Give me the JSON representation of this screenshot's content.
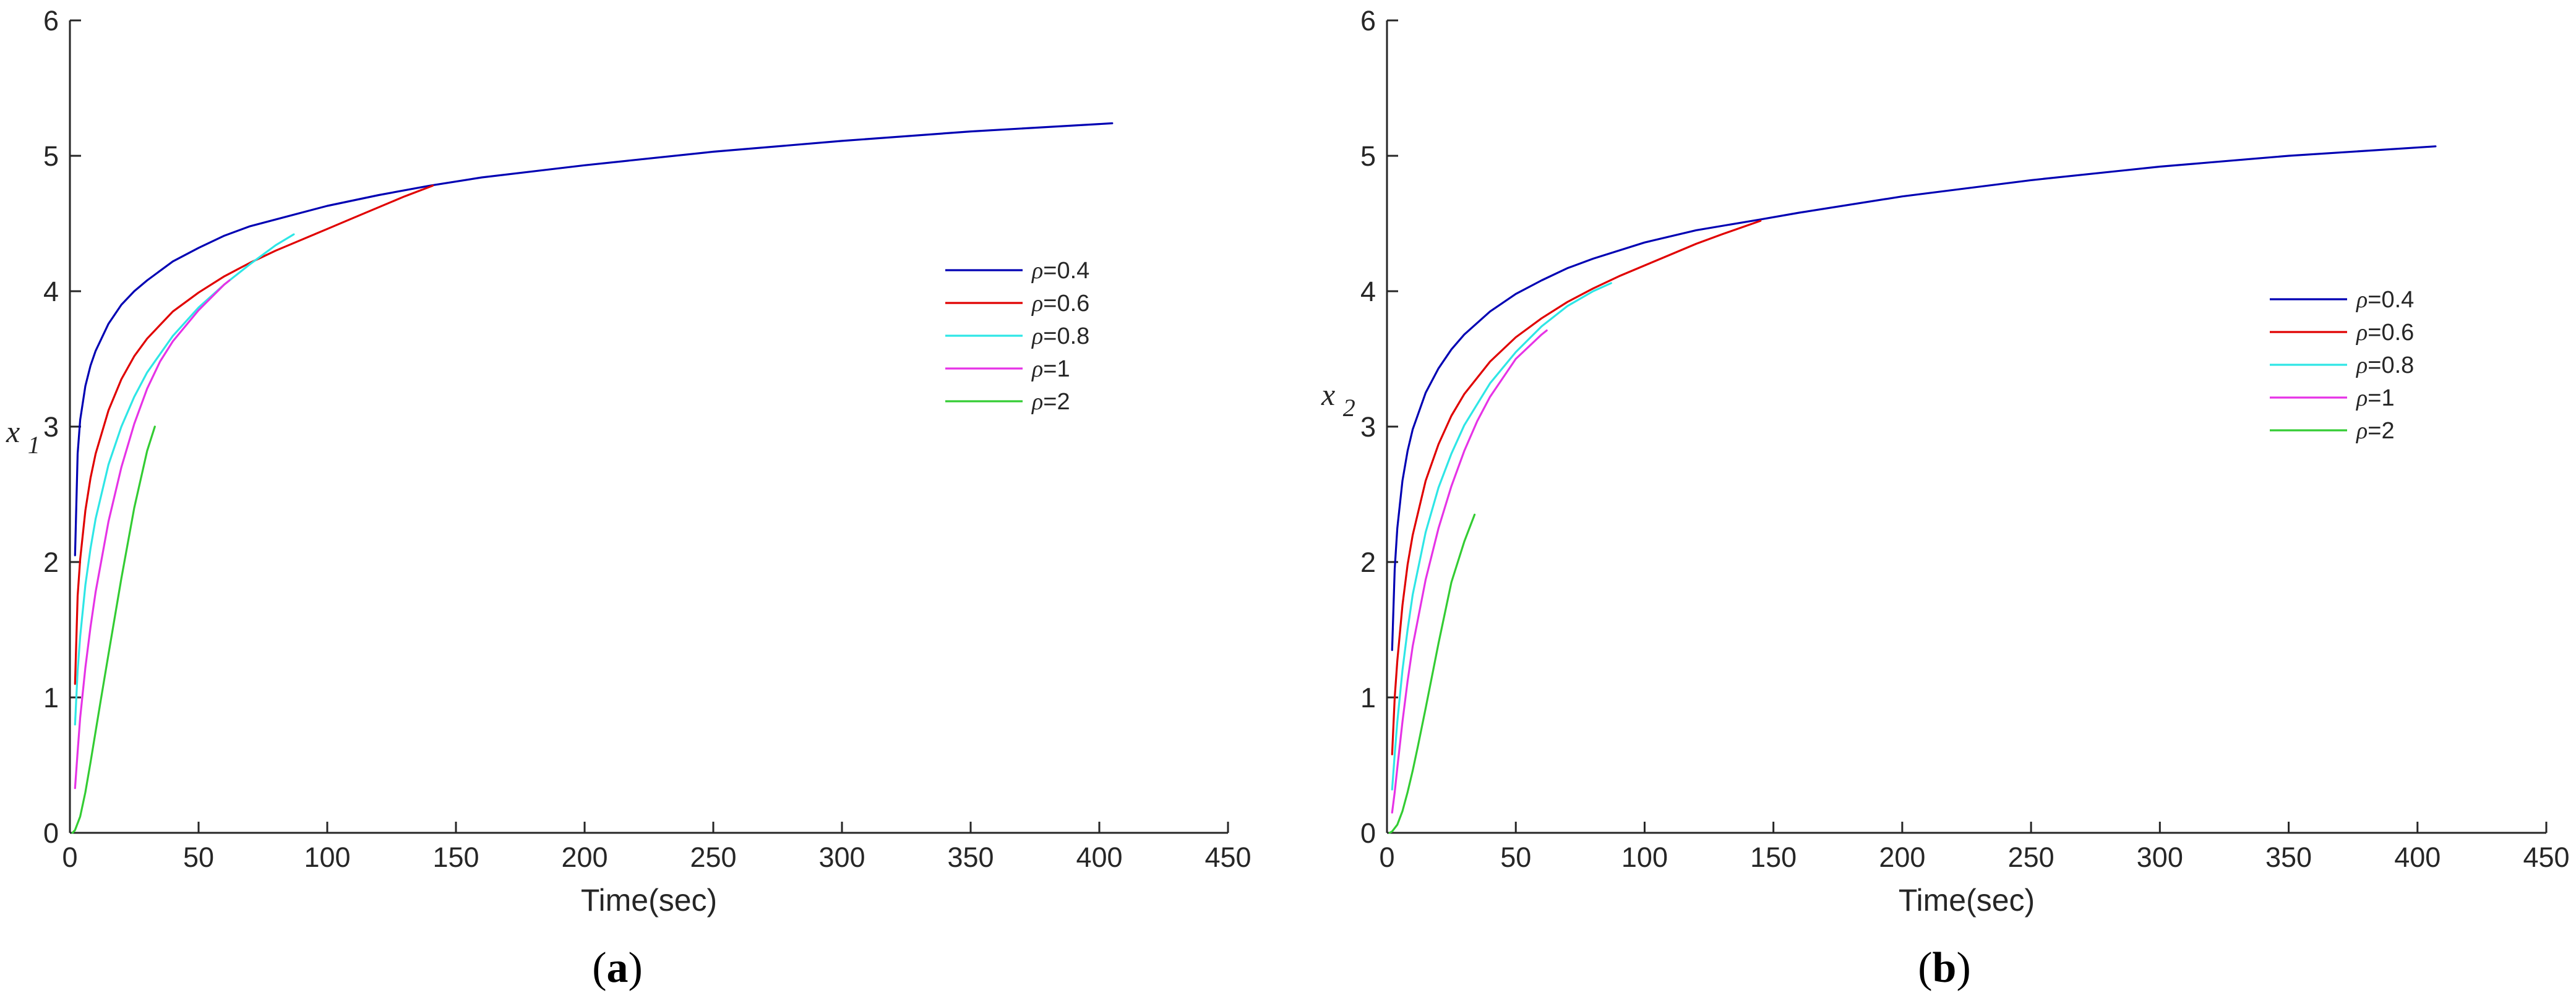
{
  "chart_data": [
    {
      "type": "line",
      "panel_label": "a",
      "xlabel": "Time(sec)",
      "ylabel": "x",
      "ylabel_subscript": "1",
      "xlim": [
        0,
        450
      ],
      "ylim": [
        0,
        6
      ],
      "xticks": [
        0,
        50,
        100,
        150,
        200,
        250,
        300,
        350,
        400,
        450
      ],
      "yticks": [
        0,
        1,
        2,
        3,
        4,
        5,
        6
      ],
      "grid": false,
      "legend_position": "right-center",
      "series": [
        {
          "name": "ρ=0.4",
          "color": "#0000b3",
          "x": [
            2,
            3,
            4,
            6,
            8,
            10,
            15,
            20,
            25,
            30,
            40,
            50,
            60,
            70,
            80,
            100,
            120,
            140,
            160,
            200,
            250,
            300,
            350,
            405
          ],
          "y": [
            2.05,
            2.8,
            3.05,
            3.3,
            3.45,
            3.56,
            3.76,
            3.9,
            4.0,
            4.08,
            4.22,
            4.32,
            4.41,
            4.48,
            4.53,
            4.63,
            4.71,
            4.78,
            4.84,
            4.93,
            5.03,
            5.11,
            5.18,
            5.24
          ]
        },
        {
          "name": "ρ=0.6",
          "color": "#e00000",
          "x": [
            2,
            3,
            4,
            6,
            8,
            10,
            15,
            20,
            25,
            30,
            40,
            50,
            60,
            70,
            80,
            90,
            100,
            110,
            120,
            130,
            141
          ],
          "y": [
            1.1,
            1.75,
            2.02,
            2.38,
            2.62,
            2.8,
            3.12,
            3.35,
            3.52,
            3.65,
            3.85,
            3.99,
            4.11,
            4.21,
            4.3,
            4.38,
            4.46,
            4.54,
            4.62,
            4.7,
            4.78
          ]
        },
        {
          "name": "ρ=0.8",
          "color": "#2ee6e6",
          "x": [
            2,
            3,
            4,
            6,
            8,
            10,
            15,
            20,
            25,
            30,
            40,
            50,
            60,
            70,
            80,
            87
          ],
          "y": [
            0.8,
            1.2,
            1.45,
            1.83,
            2.1,
            2.32,
            2.72,
            3.0,
            3.22,
            3.4,
            3.67,
            3.88,
            4.05,
            4.2,
            4.34,
            4.42
          ]
        },
        {
          "name": "ρ=1",
          "color": "#e633e6",
          "x": [
            2,
            3,
            4,
            6,
            8,
            10,
            15,
            20,
            25,
            30,
            35,
            40,
            50,
            60,
            62
          ],
          "y": [
            0.33,
            0.6,
            0.85,
            1.22,
            1.52,
            1.78,
            2.3,
            2.7,
            3.02,
            3.28,
            3.48,
            3.63,
            3.86,
            4.05,
            4.08
          ]
        },
        {
          "name": "ρ=2",
          "color": "#33cc33",
          "x": [
            1,
            2,
            4,
            6,
            8,
            10,
            12,
            15,
            20,
            25,
            30,
            33
          ],
          "y": [
            0.0,
            0.02,
            0.12,
            0.3,
            0.52,
            0.75,
            0.98,
            1.32,
            1.88,
            2.4,
            2.82,
            3.0
          ]
        }
      ]
    },
    {
      "type": "line",
      "panel_label": "b",
      "xlabel": "Time(sec)",
      "ylabel": "x",
      "ylabel_subscript": "2",
      "xlim": [
        0,
        450
      ],
      "ylim": [
        0,
        6
      ],
      "xticks": [
        0,
        50,
        100,
        150,
        200,
        250,
        300,
        350,
        400,
        450
      ],
      "yticks": [
        0,
        1,
        2,
        3,
        4,
        5,
        6
      ],
      "grid": false,
      "legend_position": "right-center",
      "series": [
        {
          "name": "ρ=0.4",
          "color": "#0000b3",
          "x": [
            2,
            3,
            4,
            6,
            8,
            10,
            15,
            20,
            25,
            30,
            40,
            50,
            60,
            70,
            80,
            100,
            120,
            145,
            160,
            200,
            250,
            300,
            350,
            407
          ],
          "y": [
            1.35,
            1.95,
            2.25,
            2.6,
            2.82,
            2.98,
            3.25,
            3.43,
            3.57,
            3.68,
            3.85,
            3.98,
            4.08,
            4.17,
            4.24,
            4.36,
            4.45,
            4.53,
            4.58,
            4.7,
            4.82,
            4.92,
            5.0,
            5.07
          ]
        },
        {
          "name": "ρ=0.6",
          "color": "#e00000",
          "x": [
            2,
            3,
            4,
            6,
            8,
            10,
            15,
            20,
            25,
            30,
            40,
            50,
            60,
            70,
            80,
            90,
            100,
            110,
            120,
            130,
            145
          ],
          "y": [
            0.58,
            1.0,
            1.27,
            1.68,
            1.98,
            2.2,
            2.6,
            2.87,
            3.08,
            3.24,
            3.48,
            3.66,
            3.8,
            3.92,
            4.02,
            4.11,
            4.19,
            4.27,
            4.35,
            4.42,
            4.52
          ]
        },
        {
          "name": "ρ=0.8",
          "color": "#2ee6e6",
          "x": [
            2,
            3,
            4,
            6,
            8,
            10,
            15,
            20,
            25,
            30,
            40,
            50,
            60,
            70,
            80,
            87
          ],
          "y": [
            0.32,
            0.58,
            0.82,
            1.2,
            1.5,
            1.76,
            2.22,
            2.55,
            2.8,
            3.01,
            3.32,
            3.55,
            3.74,
            3.89,
            4.0,
            4.06
          ]
        },
        {
          "name": "ρ=1",
          "color": "#e633e6",
          "x": [
            2,
            3,
            4,
            6,
            8,
            10,
            15,
            20,
            25,
            30,
            35,
            40,
            50,
            60,
            62
          ],
          "y": [
            0.15,
            0.3,
            0.48,
            0.82,
            1.12,
            1.38,
            1.87,
            2.25,
            2.56,
            2.82,
            3.04,
            3.22,
            3.5,
            3.68,
            3.71
          ]
        },
        {
          "name": "ρ=2",
          "color": "#33cc33",
          "x": [
            1,
            2,
            4,
            6,
            8,
            10,
            12,
            15,
            20,
            25,
            30,
            34
          ],
          "y": [
            0.0,
            0.01,
            0.06,
            0.16,
            0.3,
            0.46,
            0.64,
            0.92,
            1.4,
            1.85,
            2.15,
            2.35
          ]
        }
      ]
    }
  ]
}
